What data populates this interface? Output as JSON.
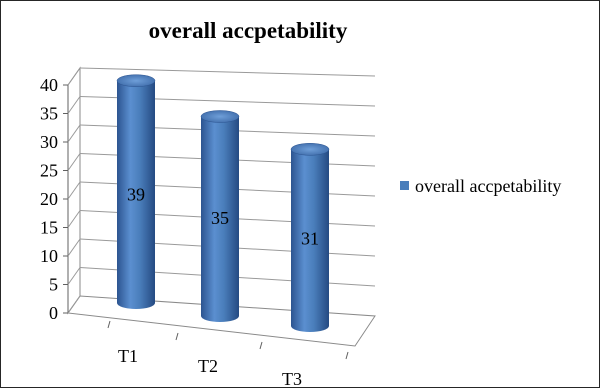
{
  "chart_data": {
    "type": "bar",
    "style": "3d-cylinder",
    "title": "overall accpetability",
    "categories": [
      "T1",
      "T2",
      "T3"
    ],
    "series": [
      {
        "name": "overall accpetability",
        "values": [
          39,
          35,
          31
        ]
      }
    ],
    "ylim": [
      0,
      40
    ],
    "yticks": [
      "0",
      "5",
      "10",
      "15",
      "20",
      "25",
      "30",
      "35",
      "40"
    ],
    "data_labels": [
      "39",
      "35",
      "31"
    ],
    "grid": true,
    "legend_position": "right",
    "bar_color": "#4a7ebb"
  }
}
